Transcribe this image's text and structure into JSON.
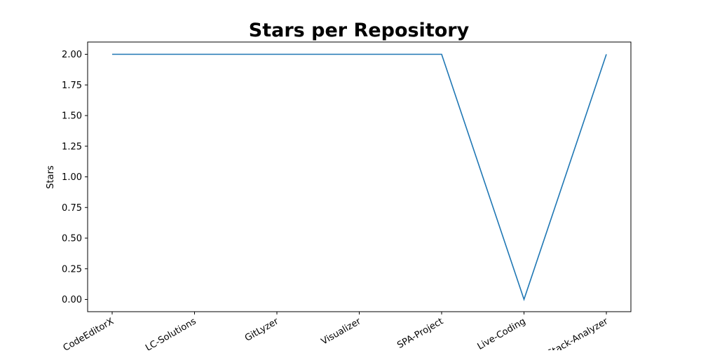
{
  "chart_data": {
    "type": "line",
    "title": "Stars per Repository",
    "xlabel": "",
    "ylabel": "Stars",
    "categories": [
      "CodeEditorX",
      "LC-Solutions",
      "GitLyzer",
      "Visualizer",
      "SPA-Project",
      "Live-Coding",
      "Stack-Analyzer"
    ],
    "series": [
      {
        "values": [
          2,
          2,
          2,
          2,
          2,
          0,
          2
        ]
      }
    ],
    "ylim": [
      -0.1,
      2.1
    ],
    "yticks": [
      "0.00",
      "0.25",
      "0.50",
      "0.75",
      "1.00",
      "1.25",
      "1.50",
      "1.75",
      "2.00"
    ],
    "grid": false,
    "line_color": "#1f77b4"
  }
}
